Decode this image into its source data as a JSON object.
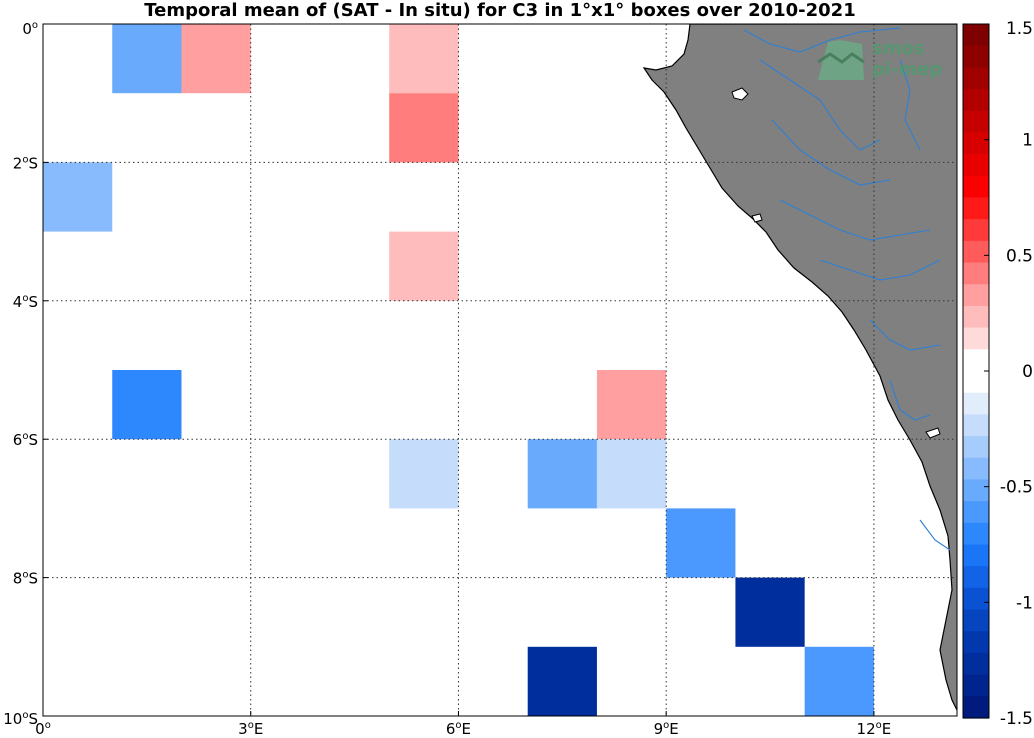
{
  "chart_data": {
    "type": "heatmap",
    "title": "Temporal mean of (SAT - In situ) for C3 in 1°x1° boxes over 2010-2021",
    "xlim": [
      0,
      13.2
    ],
    "ylim": [
      -10,
      0
    ],
    "x_ticks": [
      {
        "value": 0,
        "label": "0°"
      },
      {
        "value": 3,
        "label": "3°E"
      },
      {
        "value": 6,
        "label": "6°E"
      },
      {
        "value": 9,
        "label": "9°E"
      },
      {
        "value": 12,
        "label": "12°E"
      }
    ],
    "y_ticks": [
      {
        "value": 0,
        "label": "0°"
      },
      {
        "value": -2,
        "label": "2°S"
      },
      {
        "value": -4,
        "label": "4°S"
      },
      {
        "value": -6,
        "label": "6°S"
      },
      {
        "value": -8,
        "label": "8°S"
      },
      {
        "value": -10,
        "label": "10°S"
      }
    ],
    "grid": true,
    "cells": [
      {
        "lon": 1,
        "lat": -1,
        "value": -0.55
      },
      {
        "lon": 2,
        "lat": -1,
        "value": 0.35
      },
      {
        "lon": 5,
        "lat": -1,
        "value": 0.2
      },
      {
        "lon": 5,
        "lat": -2,
        "value": 0.45
      },
      {
        "lon": 0,
        "lat": -3,
        "value": -0.45
      },
      {
        "lon": 5,
        "lat": -4,
        "value": 0.2
      },
      {
        "lon": 1,
        "lat": -6,
        "value": -0.7
      },
      {
        "lon": 8,
        "lat": -6,
        "value": 0.35
      },
      {
        "lon": 5,
        "lat": -7,
        "value": -0.25
      },
      {
        "lon": 7,
        "lat": -7,
        "value": -0.55
      },
      {
        "lon": 8,
        "lat": -7,
        "value": -0.25
      },
      {
        "lon": 9,
        "lat": -8,
        "value": -0.65
      },
      {
        "lon": 10,
        "lat": -9,
        "value": -1.3
      },
      {
        "lon": 7,
        "lat": -10,
        "value": -1.25
      },
      {
        "lon": 11,
        "lat": -10,
        "value": -0.6
      }
    ],
    "colorbar": {
      "range": [
        -1.5,
        1.5
      ],
      "ticks": [
        {
          "value": 1.5,
          "label": "1.5"
        },
        {
          "value": 1,
          "label": "1"
        },
        {
          "value": 0.5,
          "label": "0.5"
        },
        {
          "value": 0,
          "label": "0"
        },
        {
          "value": -0.5,
          "label": "-0.5"
        },
        {
          "value": -1,
          "label": "-1"
        },
        {
          "value": -1.5,
          "label": "-1.5"
        }
      ],
      "colors_top_to_bottom": [
        "#7f0000",
        "#8e0000",
        "#a00000",
        "#b20000",
        "#c40000",
        "#d60000",
        "#e80000",
        "#fb0000",
        "#ff1a1a",
        "#ff3a3a",
        "#ff5b5b",
        "#ff7d7d",
        "#ff9f9f",
        "#ffbcbc",
        "#ffdada",
        "#ffffff",
        "#ffffff",
        "#e2edfb",
        "#c5ddfb",
        "#a6ccfc",
        "#88bbfd",
        "#69aafd",
        "#4b99fe",
        "#2d88fe",
        "#1a75f8",
        "#1263e6",
        "#0b51d3",
        "#0644c0",
        "#0238ad",
        "#012e9d",
        "#00248e",
        "#001a7e"
      ]
    },
    "land_color": "#808080",
    "river_color": "#2e7fd6"
  },
  "logo": {
    "line1": "smos",
    "line2": "pi-mep"
  }
}
